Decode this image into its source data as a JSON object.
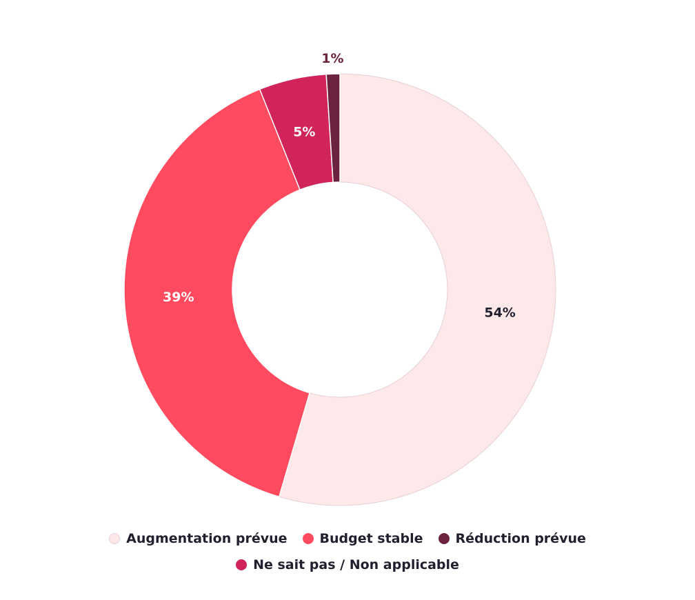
{
  "chart_data": {
    "type": "pie",
    "variant": "donut",
    "title": "",
    "slices": [
      {
        "name": "Augmentation prévue",
        "value": 54,
        "label": "54%",
        "color": "#fde8ea",
        "label_color": "#1f1f2e",
        "label_outside": false
      },
      {
        "name": "Budget stable",
        "value": 39,
        "label": "39%",
        "color": "#ff4a5f",
        "label_color": "#ffffff",
        "label_outside": false
      },
      {
        "name": "Ne sait pas / Non applicable",
        "value": 5,
        "label": "5%",
        "color": "#d0245a",
        "label_color": "#ffffff",
        "label_outside": false
      },
      {
        "name": "Réduction prévue",
        "value": 1,
        "label": "1%",
        "color": "#6b2340",
        "label_color": "#6b2340",
        "label_outside": true
      }
    ],
    "legend": {
      "placement": "bottom-center",
      "rows": [
        [
          "Augmentation prévue",
          "Budget stable",
          "Réduction prévue"
        ],
        [
          "Ne sait pas / Non applicable"
        ]
      ]
    }
  }
}
